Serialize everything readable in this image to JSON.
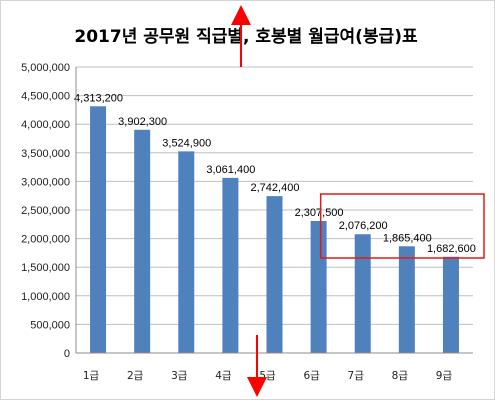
{
  "chart_data": {
    "type": "bar",
    "title": "2017년 공무원 직급별, 호봉별 월급여(봉급)표",
    "categories": [
      "1급",
      "2급",
      "3급",
      "4급",
      "5급",
      "6급",
      "7급",
      "8급",
      "9급"
    ],
    "values": [
      4313200,
      3902300,
      3524900,
      3061400,
      2742400,
      2307500,
      2076200,
      1865400,
      1682600
    ],
    "data_labels": [
      "4,313,200",
      "3,902,300",
      "3,524,900",
      "3,061,400",
      "2,742,400",
      "2,307,500",
      "2,076,200",
      "1,865,400",
      "1,682,600"
    ],
    "ylim": [
      0,
      5000000
    ],
    "yticks": [
      "0",
      "500,000",
      "1,000,000",
      "1,500,000",
      "2,000,000",
      "2,500,000",
      "3,000,000",
      "3,500,000",
      "4,000,000",
      "4,500,000",
      "5,000,000"
    ],
    "xlabel": "",
    "ylabel": "",
    "grid": true,
    "legend": "none",
    "bar_color": "#4f81bd",
    "annotations": {
      "arrow_color": "#ff0000",
      "box_color": "#e31a1c",
      "highlighted_categories": [
        "7급",
        "8급",
        "9급"
      ]
    }
  }
}
